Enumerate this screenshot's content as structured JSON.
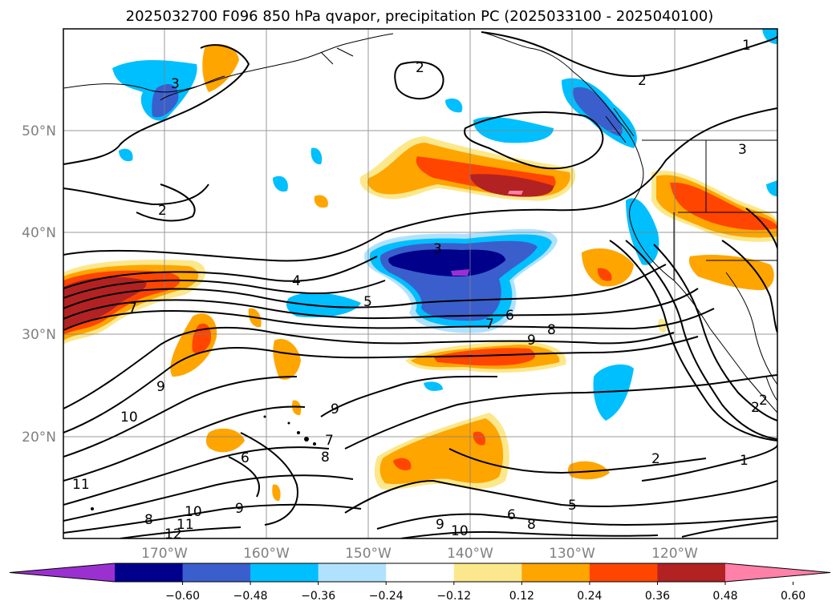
{
  "map": {
    "title": "2025032700 F096 850 hPa qvapor, precipitation PC (2025033100 - 2025040100)",
    "lat_labels": [
      "50°N",
      "40°N",
      "30°N",
      "20°N"
    ],
    "lon_labels": [
      "170°W",
      "160°W",
      "150°W",
      "140°W",
      "130°W",
      "120°W"
    ],
    "colorbar": {
      "tick_labels": [
        "−0.60",
        "−0.48",
        "−0.36",
        "−0.24",
        "−0.12",
        "0.12",
        "0.24",
        "0.36",
        "0.48",
        "0.60"
      ],
      "colors": [
        "#9b30d0",
        "#00008b",
        "#3a5fcd",
        "#00bfff",
        "#b0e2ff",
        "#ffffff",
        "#fce88c",
        "#ffa500",
        "#ff4500",
        "#b22222",
        "#ff80a8"
      ]
    },
    "contour_labels": [
      "2",
      "2",
      "2",
      "2",
      "2",
      "3",
      "3",
      "3",
      "4",
      "5",
      "6",
      "6",
      "7",
      "7",
      "7",
      "8",
      "8",
      "8",
      "9",
      "9",
      "9",
      "9",
      "10",
      "10",
      "11",
      "11",
      "12",
      "1",
      "1",
      "2",
      "6",
      "5",
      "8",
      "9",
      "10"
    ],
    "colors": {
      "grid": "#808080",
      "coast": "#000000",
      "contour": "#000000"
    }
  }
}
